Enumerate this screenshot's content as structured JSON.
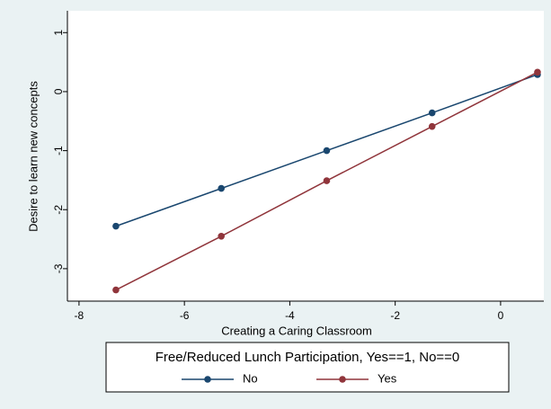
{
  "chart_data": {
    "type": "line",
    "x_label": "Creating a Caring Classroom",
    "y_label": "Desire to learn new concepts",
    "x": [
      -7.3,
      -5.3,
      -3.3,
      -1.3,
      0.7
    ],
    "series": [
      {
        "name": "No",
        "color": "#1a476f",
        "values": [
          -2.28,
          -1.64,
          -1.0,
          -0.36,
          0.29
        ]
      },
      {
        "name": "Yes",
        "color": "#90353b",
        "values": [
          -3.36,
          -2.45,
          -1.51,
          -0.59,
          0.33
        ]
      }
    ],
    "xlim": [
      -8.22,
      0.82
    ],
    "xticks": [
      -8,
      -6,
      -4,
      -2,
      0
    ],
    "ylim": [
      -3.55,
      1.37
    ],
    "yticks": [
      1,
      0,
      -1,
      -2,
      -3
    ],
    "grid": false,
    "legend_title": "Free/Reduced Lunch Participation, Yes==1, No==0",
    "legend_position": "bottom"
  }
}
